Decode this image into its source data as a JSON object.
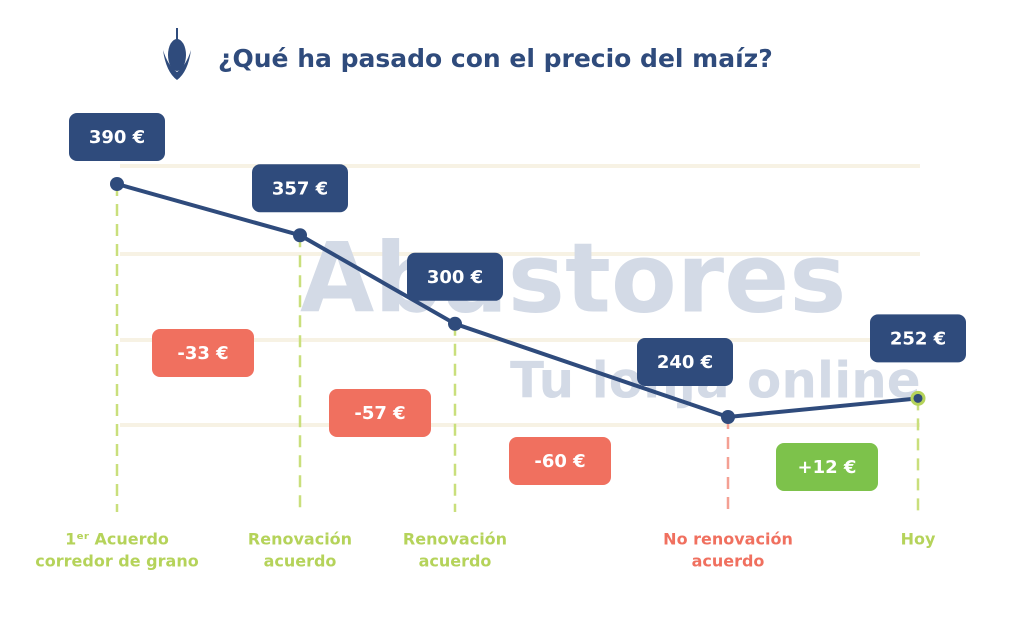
{
  "chart_data": {
    "type": "line",
    "title": "¿Qué ha pasado con el precio del maíz?",
    "watermark": [
      "Abastores",
      "Tu lonja online"
    ],
    "categories": [
      [
        "1ᵉʳ Acuerdo",
        "corredor de grano"
      ],
      [
        "Renovación",
        "acuerdo"
      ],
      [
        "Renovación",
        "acuerdo"
      ],
      [
        "No renovación",
        "acuerdo"
      ],
      [
        "Hoy"
      ]
    ],
    "values": [
      390,
      357,
      300,
      240,
      252
    ],
    "value_labels": [
      "390 €",
      "357 €",
      "300 €",
      "240 €",
      "252 €"
    ],
    "changes": {
      "values": [
        -33,
        -57,
        -60,
        12
      ],
      "value_labels": [
        "-33 €",
        "-57 €",
        "-60 €",
        "+12 €"
      ]
    },
    "color": "#2f4b7c"
  }
}
